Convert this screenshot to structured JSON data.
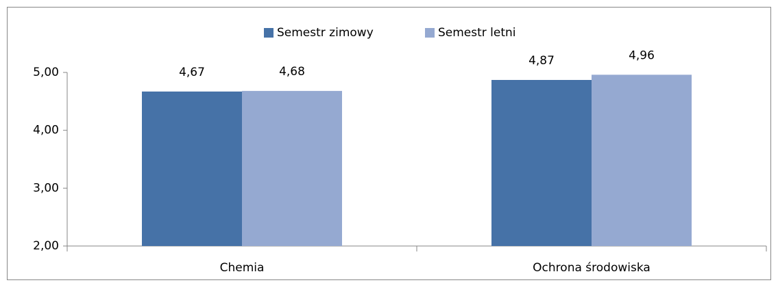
{
  "chart_data": {
    "type": "bar",
    "categories": [
      "Chemia",
      "Ochrona środowiska"
    ],
    "series": [
      {
        "name": "Semestr zimowy",
        "color": "#4672a7",
        "values": [
          4.67,
          4.87
        ],
        "value_labels": [
          "4,67",
          "4,87"
        ]
      },
      {
        "name": "Semestr letni",
        "color": "#95a9d1",
        "values": [
          4.68,
          4.96
        ],
        "value_labels": [
          "4,68",
          "4,96"
        ]
      }
    ],
    "ylim": [
      2,
      5
    ],
    "yticks": [
      {
        "value": 2,
        "label": "2,00"
      },
      {
        "value": 3,
        "label": "3,00"
      },
      {
        "value": 4,
        "label": "4,00"
      },
      {
        "value": 5,
        "label": "5,00"
      }
    ],
    "grid": false,
    "legend": "top"
  }
}
